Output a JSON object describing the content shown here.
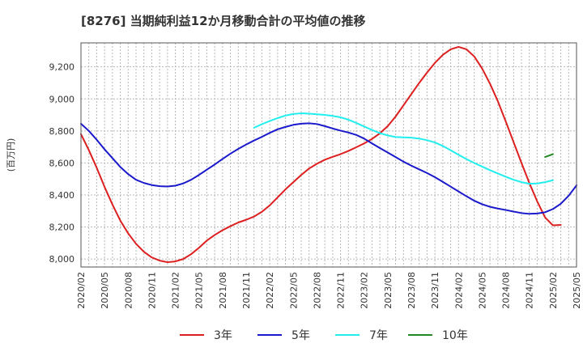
{
  "chart_data": {
    "type": "line",
    "title": "[8276]  当期純利益12か月移動合計の平均値の推移",
    "ylabel": "(百万円)",
    "xlabel": "",
    "ylim": [
      7950,
      9350
    ],
    "yticks": [
      8000,
      8200,
      8400,
      8600,
      8800,
      9000,
      9200
    ],
    "ytick_labels": [
      "8,000",
      "8,200",
      "8,400",
      "8,600",
      "8,800",
      "9,000",
      "9,200"
    ],
    "xlim": [
      "2020-02",
      "2025-05"
    ],
    "xtick_labels": [
      "2020/02",
      "2020/05",
      "2020/08",
      "2020/11",
      "2021/02",
      "2021/05",
      "2021/08",
      "2021/11",
      "2022/02",
      "2022/05",
      "2022/08",
      "2022/11",
      "2023/02",
      "2023/05",
      "2023/08",
      "2023/11",
      "2024/02",
      "2024/05",
      "2024/08",
      "2024/11",
      "2025/02",
      "2025/05"
    ],
    "grid": true,
    "legend_position": "bottom",
    "series": [
      {
        "name": "3年",
        "color": "#dd1f1f",
        "start": "2020-02",
        "values": [
          8780,
          8680,
          8570,
          8450,
          8340,
          8240,
          8160,
          8095,
          8045,
          8010,
          7990,
          7980,
          7985,
          8000,
          8030,
          8070,
          8115,
          8150,
          8180,
          8205,
          8228,
          8245,
          8265,
          8295,
          8335,
          8385,
          8435,
          8480,
          8525,
          8565,
          8595,
          8620,
          8638,
          8655,
          8675,
          8698,
          8722,
          8750,
          8785,
          8830,
          8890,
          8960,
          9030,
          9100,
          9165,
          9225,
          9275,
          9310,
          9325,
          9310,
          9265,
          9190,
          9095,
          8985,
          8860,
          8730,
          8600,
          8475,
          8360,
          8260,
          8210,
          8213
        ]
      },
      {
        "name": "5年",
        "color": "#1a1acc",
        "start": "2020-02",
        "values": [
          8845,
          8800,
          8745,
          8685,
          8630,
          8575,
          8530,
          8495,
          8475,
          8462,
          8455,
          8453,
          8458,
          8472,
          8495,
          8525,
          8558,
          8590,
          8625,
          8658,
          8688,
          8715,
          8740,
          8763,
          8788,
          8810,
          8825,
          8838,
          8845,
          8848,
          8843,
          8830,
          8815,
          8802,
          8790,
          8775,
          8752,
          8722,
          8693,
          8665,
          8637,
          8608,
          8583,
          8560,
          8537,
          8511,
          8482,
          8452,
          8422,
          8392,
          8364,
          8342,
          8326,
          8315,
          8306,
          8296,
          8287,
          8282,
          8284,
          8292,
          8312,
          8345,
          8395,
          8460
        ]
      },
      {
        "name": "7年",
        "color": "#22eeee",
        "start": "2021-12",
        "values": [
          8820,
          8842,
          8862,
          8880,
          8896,
          8906,
          8910,
          8908,
          8904,
          8900,
          8894,
          8885,
          8870,
          8850,
          8828,
          8806,
          8786,
          8772,
          8762,
          8760,
          8758,
          8752,
          8742,
          8728,
          8706,
          8679,
          8651,
          8624,
          8600,
          8577,
          8555,
          8534,
          8514,
          8495,
          8480,
          8470,
          8472,
          8480,
          8492
        ]
      },
      {
        "name": "10年",
        "color": "#228822",
        "start": "2025-01",
        "values": [
          8637,
          8655
        ]
      }
    ]
  }
}
